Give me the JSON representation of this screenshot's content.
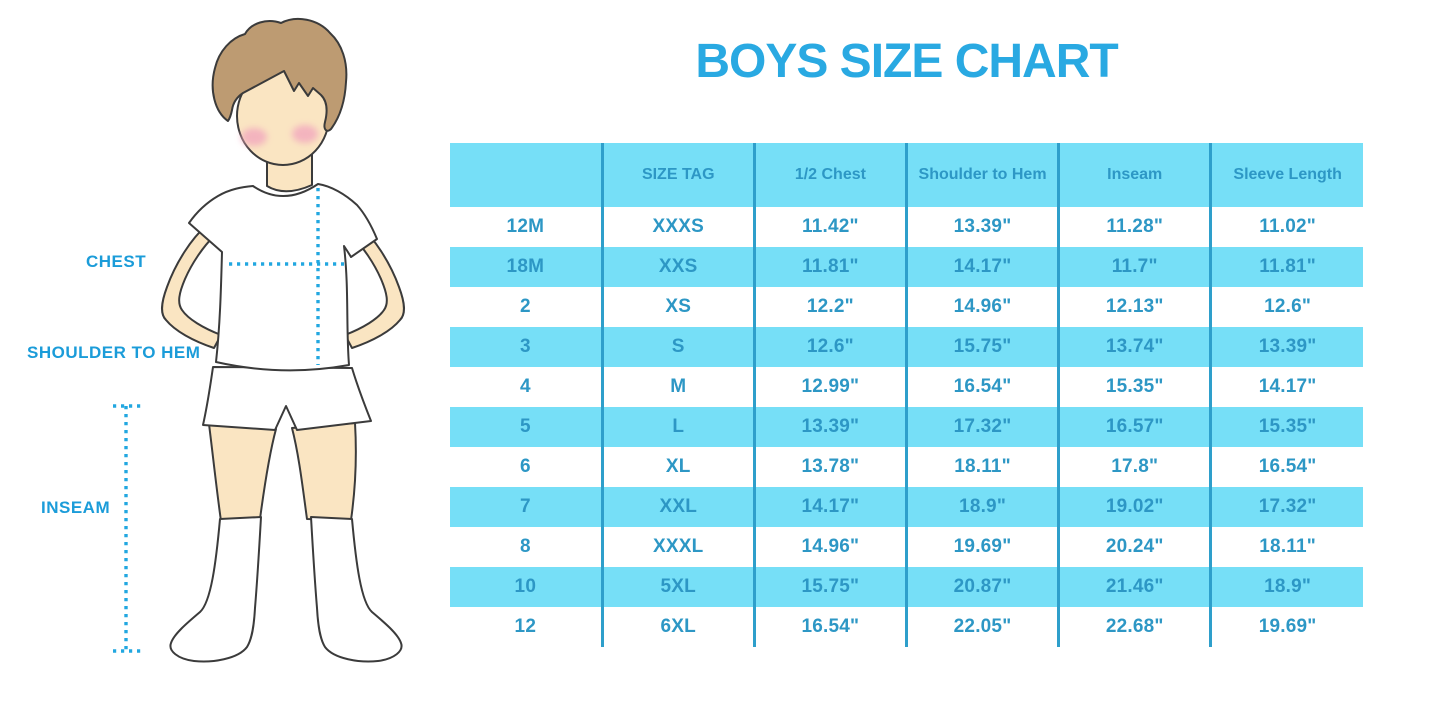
{
  "title": "BOYS SIZE CHART",
  "figure": {
    "chest_label": "CHEST",
    "shoulder_to_hem_label": "SHOULDER TO HEM",
    "inseam_label": "INSEAM"
  },
  "table": {
    "headers": [
      "",
      "SIZE TAG",
      "1/2 Chest",
      "Shoulder to Hem",
      "Inseam",
      "Sleeve Length"
    ],
    "rows": [
      [
        "12M",
        "XXXS",
        "11.42\"",
        "13.39\"",
        "11.28\"",
        "11.02\""
      ],
      [
        "18M",
        "XXS",
        "11.81\"",
        "14.17\"",
        "11.7\"",
        "11.81\""
      ],
      [
        "2",
        "XS",
        "12.2\"",
        "14.96\"",
        "12.13\"",
        "12.6\""
      ],
      [
        "3",
        "S",
        "12.6\"",
        "15.75\"",
        "13.74\"",
        "13.39\""
      ],
      [
        "4",
        "M",
        "12.99\"",
        "16.54\"",
        "15.35\"",
        "14.17\""
      ],
      [
        "5",
        "L",
        "13.39\"",
        "17.32\"",
        "16.57\"",
        "15.35\""
      ],
      [
        "6",
        "XL",
        "13.78\"",
        "18.11\"",
        "17.8\"",
        "16.54\""
      ],
      [
        "7",
        "XXL",
        "14.17\"",
        "18.9\"",
        "19.02\"",
        "17.32\""
      ],
      [
        "8",
        "XXXL",
        "14.96\"",
        "19.69\"",
        "20.24\"",
        "18.11\""
      ],
      [
        "10",
        "5XL",
        "15.75\"",
        "20.87\"",
        "21.46\"",
        "18.9\""
      ],
      [
        "12",
        "6XL",
        "16.54\"",
        "22.05\"",
        "22.68\"",
        "19.69\""
      ]
    ]
  },
  "colors": {
    "accent_blue": "#29A9E2",
    "label_blue": "#1B9CD9",
    "dotted_blue": "#22A7E0",
    "row_fill": "#76DFF7",
    "table_text": "#2D97C5",
    "divider": "#2E9FCB",
    "skin": "#FAE5C2",
    "hair": "#BD9B72",
    "outline": "#3B3B3B",
    "blush": "#F2A8BE"
  }
}
